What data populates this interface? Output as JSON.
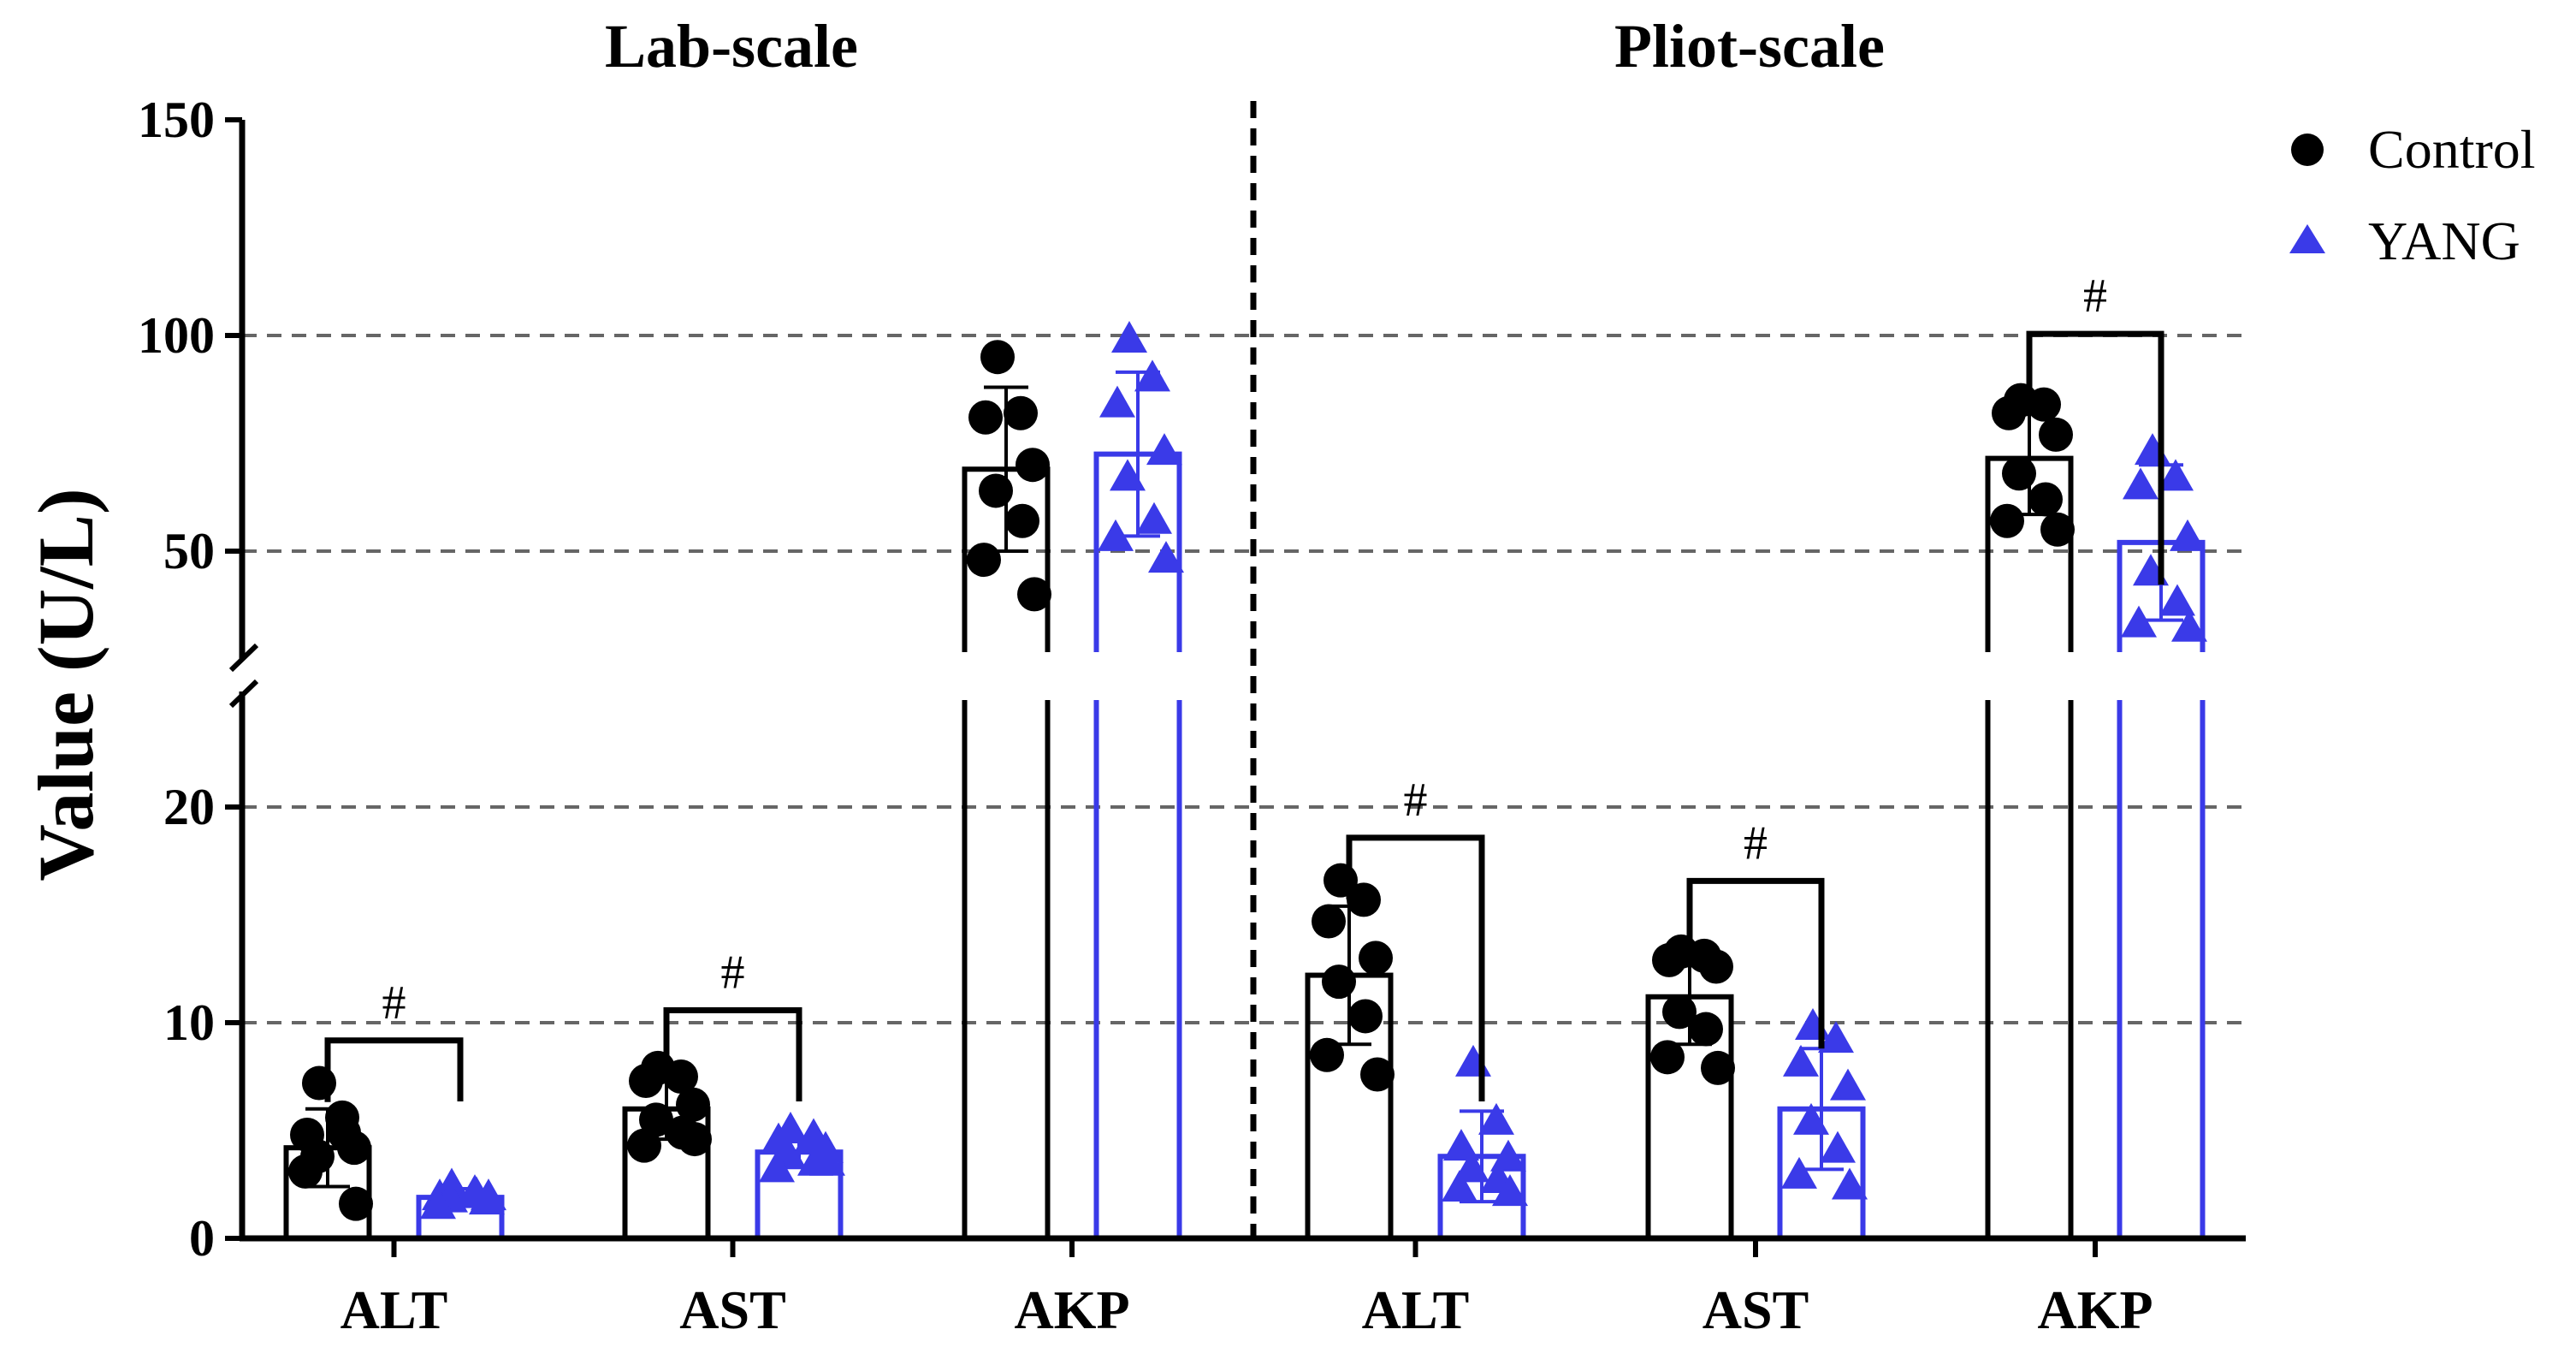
{
  "chart_data": {
    "type": "bar",
    "ylabel": "Value (U/L)",
    "y_ticks_lower": [
      0,
      10,
      20
    ],
    "y_ticks_upper": [
      50,
      100,
      150
    ],
    "ylim_lower": [
      0,
      25
    ],
    "ylim_upper": [
      30,
      150
    ],
    "gridlines": [
      10,
      20,
      50,
      100
    ],
    "legend_position": "top-right",
    "series": [
      {
        "name": "Control",
        "color": "#000000",
        "marker": "circle"
      },
      {
        "name": "YANG",
        "color": "#3a3ae8",
        "marker": "triangle"
      }
    ],
    "panels": [
      {
        "title": "Lab-scale",
        "groups": [
          {
            "category": "ALT",
            "significance": "#",
            "control": {
              "mean": 4.2,
              "sd": 1.8,
              "points": [
                7.2,
                5.6,
                4.8,
                4.2,
                3.8,
                4.9,
                3.1,
                1.6
              ]
            },
            "yang": {
              "mean": 1.9,
              "sd": 0.4,
              "points": [
                2.4,
                2.1,
                1.9,
                1.7,
                1.8,
                2.0,
                1.5,
                1.9
              ]
            }
          },
          {
            "category": "AST",
            "significance": "#",
            "control": {
              "mean": 6.0,
              "sd": 1.4,
              "points": [
                7.9,
                7.5,
                7.3,
                6.2,
                5.5,
                4.9,
                4.3,
                4.6
              ]
            },
            "yang": {
              "mean": 4.0,
              "sd": 0.7,
              "points": [
                5.0,
                4.7,
                4.5,
                4.1,
                3.8,
                3.5,
                3.2,
                3.5
              ]
            }
          },
          {
            "category": "AKP",
            "significance": "",
            "control": {
              "mean": 69,
              "sd": 19,
              "points": [
                95,
                82,
                81,
                70,
                64,
                57,
                48,
                40
              ]
            },
            "yang": {
              "mean": 72.5,
              "sd": 19,
              "points": [
                99,
                90,
                84,
                73,
                67,
                57,
                53,
                48
              ]
            }
          }
        ]
      },
      {
        "title": "Pliot-scale",
        "groups": [
          {
            "category": "ALT",
            "significance": "#",
            "control": {
              "mean": 12.2,
              "sd": 3.2,
              "points": [
                16.6,
                15.7,
                14.7,
                13.0,
                11.9,
                10.3,
                8.5,
                7.6
              ]
            },
            "yang": {
              "mean": 3.8,
              "sd": 2.1,
              "points": [
                8.1,
                5.4,
                4.2,
                3.7,
                3.2,
                2.7,
                2.3,
                2.1
              ]
            }
          },
          {
            "category": "AST",
            "significance": "#",
            "control": {
              "mean": 11.2,
              "sd": 2.2,
              "points": [
                13.3,
                13.1,
                12.9,
                12.6,
                10.5,
                9.7,
                8.4,
                7.9
              ]
            },
            "yang": {
              "mean": 6.0,
              "sd": 2.8,
              "points": [
                9.8,
                9.2,
                8.1,
                7.0,
                5.4,
                4.1,
                2.9,
                2.4
              ]
            }
          },
          {
            "category": "AKP",
            "significance": "#",
            "control": {
              "mean": 71.5,
              "sd": 13,
              "points": [
                85,
                84,
                82,
                77,
                68,
                62,
                57,
                55
              ]
            },
            "yang": {
              "mean": 52,
              "sd": 18,
              "points": [
                73,
                67,
                65,
                53,
                45,
                38,
                33,
                32
              ]
            }
          }
        ]
      }
    ]
  }
}
